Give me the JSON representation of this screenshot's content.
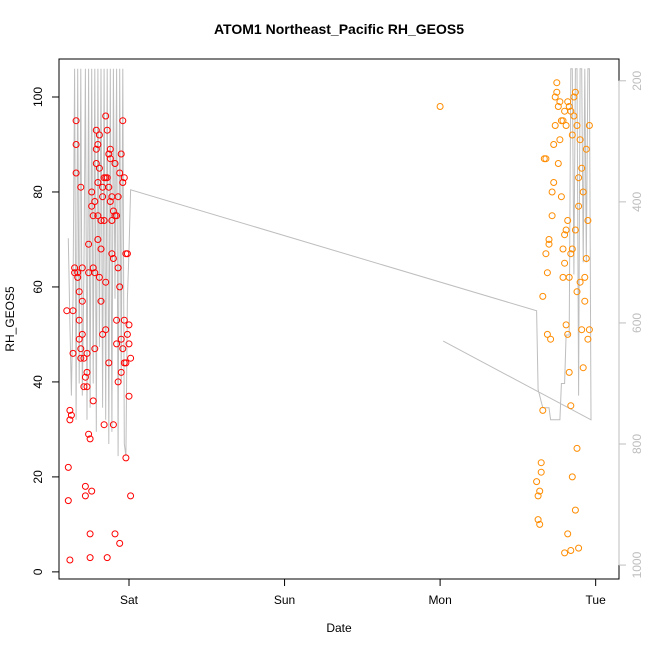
{
  "chart_data": {
    "type": "scatter",
    "title": "ATOM1 Northeast_Pacific RH_GEOS5",
    "xlabel": "Date",
    "ylabel": "RH_GEOS5",
    "x_ticks": [
      {
        "label": "Sat",
        "value": 1.0
      },
      {
        "label": "Sun",
        "value": 2.0
      },
      {
        "label": "Mon",
        "value": 3.0
      },
      {
        "label": "Tue",
        "value": 4.0
      }
    ],
    "xlim": [
      0.55,
      4.15
    ],
    "ylim": [
      -1.5,
      108
    ],
    "y_ticks": [
      0,
      20,
      40,
      60,
      80,
      100
    ],
    "y2_ticks": [
      200,
      400,
      600,
      800,
      1000
    ],
    "y2lim": [
      1023,
      164
    ],
    "grid": false,
    "legend": "none",
    "colors": {
      "series_1": "#ff0000",
      "series_2": "#ff8c00",
      "pressure": "#bebebe"
    },
    "series": [
      {
        "marker": "circle",
        "color": "#ff0000",
        "points": [
          [
            0.6,
            55
          ],
          [
            0.61,
            15
          ],
          [
            0.61,
            22
          ],
          [
            0.62,
            32
          ],
          [
            0.62,
            34
          ],
          [
            0.63,
            33
          ],
          [
            0.64,
            55
          ],
          [
            0.64,
            46
          ],
          [
            0.65,
            63
          ],
          [
            0.65,
            64
          ],
          [
            0.66,
            90
          ],
          [
            0.66,
            95
          ],
          [
            0.66,
            84
          ],
          [
            0.67,
            62
          ],
          [
            0.67,
            63
          ],
          [
            0.68,
            59
          ],
          [
            0.68,
            53
          ],
          [
            0.68,
            49
          ],
          [
            0.69,
            45
          ],
          [
            0.69,
            47
          ],
          [
            0.69,
            81
          ],
          [
            0.7,
            50
          ],
          [
            0.7,
            57
          ],
          [
            0.7,
            64
          ],
          [
            0.71,
            45
          ],
          [
            0.71,
            39
          ],
          [
            0.72,
            41
          ],
          [
            0.72,
            18
          ],
          [
            0.72,
            16
          ],
          [
            0.73,
            42
          ],
          [
            0.73,
            46
          ],
          [
            0.73,
            39
          ],
          [
            0.74,
            63
          ],
          [
            0.74,
            69
          ],
          [
            0.74,
            29
          ],
          [
            0.75,
            28
          ],
          [
            0.75,
            8
          ],
          [
            0.75,
            3
          ],
          [
            0.76,
            80
          ],
          [
            0.76,
            77
          ],
          [
            0.76,
            17
          ],
          [
            0.77,
            75
          ],
          [
            0.77,
            64
          ],
          [
            0.77,
            36
          ],
          [
            0.78,
            78
          ],
          [
            0.78,
            63
          ],
          [
            0.78,
            47
          ],
          [
            0.79,
            93
          ],
          [
            0.79,
            89
          ],
          [
            0.79,
            86
          ],
          [
            0.8,
            90
          ],
          [
            0.8,
            82
          ],
          [
            0.8,
            75
          ],
          [
            0.81,
            85
          ],
          [
            0.81,
            92
          ],
          [
            0.81,
            62
          ],
          [
            0.82,
            74
          ],
          [
            0.82,
            68
          ],
          [
            0.82,
            57
          ],
          [
            0.83,
            81
          ],
          [
            0.83,
            79
          ],
          [
            0.83,
            50
          ],
          [
            0.84,
            83
          ],
          [
            0.84,
            74
          ],
          [
            0.84,
            31
          ],
          [
            0.85,
            96
          ],
          [
            0.85,
            83
          ],
          [
            0.85,
            51
          ],
          [
            0.86,
            93
          ],
          [
            0.86,
            83
          ],
          [
            0.86,
            3
          ],
          [
            0.87,
            88
          ],
          [
            0.87,
            81
          ],
          [
            0.87,
            44
          ],
          [
            0.88,
            89
          ],
          [
            0.88,
            87
          ],
          [
            0.88,
            78
          ],
          [
            0.89,
            79
          ],
          [
            0.89,
            74
          ],
          [
            0.89,
            67
          ],
          [
            0.9,
            76
          ],
          [
            0.9,
            66
          ],
          [
            0.9,
            31
          ],
          [
            0.91,
            86
          ],
          [
            0.91,
            75
          ],
          [
            0.91,
            8
          ],
          [
            0.92,
            75
          ],
          [
            0.92,
            53
          ],
          [
            0.92,
            48
          ],
          [
            0.93,
            79
          ],
          [
            0.93,
            64
          ],
          [
            0.93,
            40
          ],
          [
            0.94,
            84
          ],
          [
            0.94,
            60
          ],
          [
            0.94,
            6
          ],
          [
            0.95,
            88
          ],
          [
            0.95,
            49
          ],
          [
            0.95,
            42
          ],
          [
            0.96,
            95
          ],
          [
            0.96,
            82
          ],
          [
            0.96,
            47
          ],
          [
            0.97,
            83
          ],
          [
            0.97,
            53
          ],
          [
            0.97,
            44
          ],
          [
            0.98,
            67
          ],
          [
            0.98,
            44
          ],
          [
            0.98,
            24
          ],
          [
            0.99,
            67
          ],
          [
            0.99,
            50
          ],
          [
            1.0,
            52
          ],
          [
            1.0,
            48
          ],
          [
            1.0,
            37
          ],
          [
            1.01,
            45
          ],
          [
            1.01,
            16
          ],
          [
            0.62,
            2.5
          ],
          [
            0.8,
            70
          ],
          [
            0.85,
            61
          ]
        ]
      },
      {
        "marker": "circle",
        "color": "#ff8c00",
        "points": [
          [
            3.0,
            98
          ],
          [
            3.62,
            19
          ],
          [
            3.63,
            16
          ],
          [
            3.63,
            11
          ],
          [
            3.64,
            10
          ],
          [
            3.64,
            17
          ],
          [
            3.65,
            21
          ],
          [
            3.65,
            23
          ],
          [
            3.66,
            34
          ],
          [
            3.66,
            58
          ],
          [
            3.67,
            87
          ],
          [
            3.68,
            87
          ],
          [
            3.68,
            67
          ],
          [
            3.69,
            50
          ],
          [
            3.69,
            63
          ],
          [
            3.7,
            70
          ],
          [
            3.7,
            69
          ],
          [
            3.71,
            49
          ],
          [
            3.72,
            75
          ],
          [
            3.72,
            80
          ],
          [
            3.73,
            82
          ],
          [
            3.73,
            90
          ],
          [
            3.74,
            94
          ],
          [
            3.74,
            100
          ],
          [
            3.75,
            101
          ],
          [
            3.75,
            103
          ],
          [
            3.76,
            98
          ],
          [
            3.76,
            86
          ],
          [
            3.77,
            99
          ],
          [
            3.77,
            91
          ],
          [
            3.78,
            95
          ],
          [
            3.78,
            79
          ],
          [
            3.79,
            95
          ],
          [
            3.79,
            68
          ],
          [
            3.79,
            62
          ],
          [
            3.8,
            97
          ],
          [
            3.8,
            71
          ],
          [
            3.8,
            65
          ],
          [
            3.81,
            94
          ],
          [
            3.81,
            72
          ],
          [
            3.81,
            52
          ],
          [
            3.82,
            99
          ],
          [
            3.82,
            74
          ],
          [
            3.82,
            50
          ],
          [
            3.83,
            98
          ],
          [
            3.83,
            62
          ],
          [
            3.83,
            42
          ],
          [
            3.84,
            97
          ],
          [
            3.84,
            67
          ],
          [
            3.84,
            35
          ],
          [
            3.85,
            92
          ],
          [
            3.85,
            68
          ],
          [
            3.85,
            20
          ],
          [
            3.86,
            96
          ],
          [
            3.86,
            100
          ],
          [
            3.87,
            101
          ],
          [
            3.87,
            72
          ],
          [
            3.87,
            13
          ],
          [
            3.88,
            94
          ],
          [
            3.88,
            59
          ],
          [
            3.88,
            26
          ],
          [
            3.89,
            83
          ],
          [
            3.89,
            77
          ],
          [
            3.89,
            5
          ],
          [
            3.9,
            91
          ],
          [
            3.9,
            61
          ],
          [
            3.91,
            85
          ],
          [
            3.91,
            51
          ],
          [
            3.92,
            80
          ],
          [
            3.92,
            43
          ],
          [
            3.93,
            62
          ],
          [
            3.93,
            57
          ],
          [
            3.94,
            89
          ],
          [
            3.94,
            66
          ],
          [
            3.95,
            74
          ],
          [
            3.95,
            49
          ],
          [
            3.96,
            94
          ],
          [
            3.96,
            51
          ],
          [
            3.8,
            4
          ],
          [
            3.84,
            4.5
          ],
          [
            3.82,
            8
          ]
        ]
      }
    ],
    "pressure_line": {
      "color": "#bebebe",
      "x": [
        0.61,
        0.62,
        0.63,
        0.64,
        0.65,
        0.66,
        0.67,
        0.68,
        0.69,
        0.7,
        0.71,
        0.72,
        0.73,
        0.74,
        0.75,
        0.76,
        0.77,
        0.78,
        0.79,
        0.8,
        0.81,
        0.82,
        0.83,
        0.84,
        0.85,
        0.86,
        0.87,
        0.88,
        0.89,
        0.9,
        0.91,
        0.92,
        0.93,
        0.94,
        0.95,
        0.96,
        0.97,
        0.98,
        0.99,
        1.0,
        1.01,
        3.62,
        3.63,
        3.64,
        3.65,
        3.66,
        3.67,
        3.68,
        3.69,
        3.7,
        3.71,
        3.72,
        3.73,
        3.74,
        3.75,
        3.76,
        3.77,
        3.78,
        3.79,
        3.8,
        3.81,
        3.82,
        3.83,
        3.84,
        3.85,
        3.86,
        3.87,
        3.88,
        3.89,
        3.9,
        3.91,
        3.92,
        3.93,
        3.94,
        3.95,
        3.96,
        3.97,
        3.02
      ],
      "y": [
        460,
        600,
        720,
        560,
        180,
        760,
        180,
        700,
        180,
        720,
        520,
        180,
        760,
        180,
        740,
        180,
        700,
        180,
        780,
        180,
        640,
        180,
        740,
        180,
        760,
        180,
        800,
        180,
        780,
        180,
        560,
        180,
        820,
        180,
        700,
        180,
        800,
        820,
        560,
        480,
        380,
        580,
        710,
        720,
        730,
        740,
        740,
        740,
        740,
        740,
        760,
        760,
        760,
        760,
        760,
        760,
        760,
        700,
        700,
        700,
        620,
        620,
        620,
        180,
        180,
        520,
        180,
        180,
        720,
        180,
        180,
        500,
        180,
        500,
        180,
        180,
        760,
        630
      ]
    }
  }
}
